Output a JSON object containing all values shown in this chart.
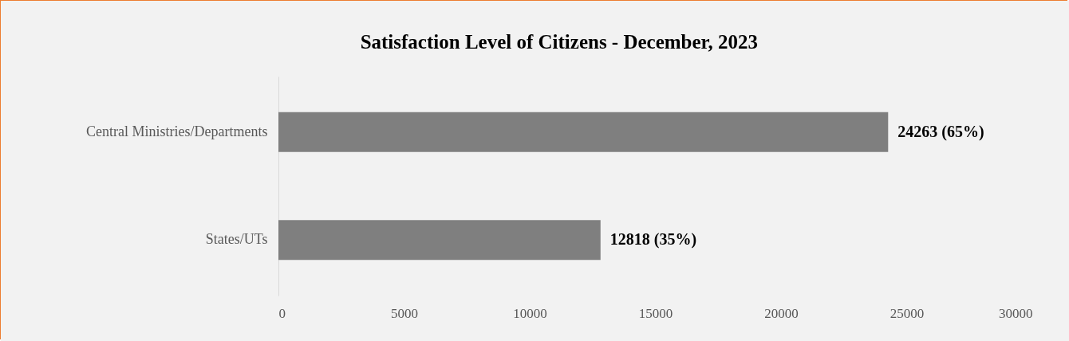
{
  "chart_data": {
    "type": "bar",
    "orientation": "horizontal",
    "title": "Satisfaction Level of Citizens - December, 2023",
    "categories": [
      "Central Ministries/Departments",
      "States/UTs"
    ],
    "values": [
      24263,
      12818
    ],
    "value_labels": [
      "24263 (65%)",
      "12818 (35%)"
    ],
    "color": "#7f7f7f",
    "xlim": [
      0,
      30000
    ],
    "xticks": [
      0,
      5000,
      10000,
      15000,
      20000,
      25000,
      30000
    ],
    "grid": false
  }
}
